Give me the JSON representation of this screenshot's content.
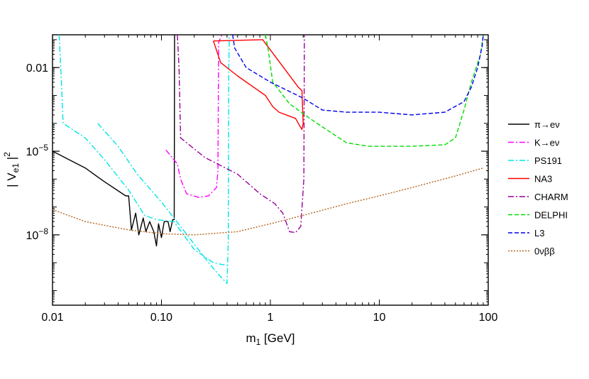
{
  "chart_data": {
    "type": "line",
    "title": "",
    "xscale": "log",
    "yscale": "log",
    "xlim": [
      0.01,
      100
    ],
    "ylim": [
      3e-11,
      0.15
    ],
    "xlabel": {
      "main": "m",
      "sub": "1",
      "unit": " [GeV]"
    },
    "ylabel": {
      "pre": "| V",
      "sub": "e1",
      "post": " |",
      "sup": "2"
    },
    "x_ticks": [
      {
        "value": 0.01,
        "label": "0.01"
      },
      {
        "value": 0.1,
        "label": "0.10"
      },
      {
        "value": 1,
        "label": "1"
      },
      {
        "value": 10,
        "label": "10"
      },
      {
        "value": 100,
        "label": "100"
      }
    ],
    "y_ticks": [
      {
        "value": 1e-08,
        "base": "10",
        "exp": "−8",
        "label": ""
      },
      {
        "value": 1e-05,
        "base": "10",
        "exp": "−5",
        "label": ""
      },
      {
        "value": 0.01,
        "base": "",
        "exp": "",
        "label": "0.01"
      }
    ],
    "legend_position": "right",
    "series": [
      {
        "name": "π→eν",
        "color": "#000000",
        "dash": "",
        "points": [
          [
            0.01,
            1e-05
          ],
          [
            0.02,
            2.5e-06
          ],
          [
            0.03,
            8e-07
          ],
          [
            0.047,
            2.5e-07
          ],
          [
            0.05,
            2.5e-07
          ],
          [
            0.053,
            1.5e-08
          ],
          [
            0.058,
            6e-08
          ],
          [
            0.062,
            1e-08
          ],
          [
            0.068,
            4e-08
          ],
          [
            0.072,
            1.3e-08
          ],
          [
            0.078,
            3e-08
          ],
          [
            0.085,
            1.3e-08
          ],
          [
            0.09,
            4e-09
          ],
          [
            0.094,
            2.5e-08
          ],
          [
            0.1,
            8e-09
          ],
          [
            0.106,
            3e-08
          ],
          [
            0.115,
            3e-08
          ],
          [
            0.12,
            1.3e-08
          ],
          [
            0.127,
            3.5e-08
          ],
          [
            0.131,
            3.5e-08
          ],
          [
            0.132,
            0.15
          ]
        ]
      },
      {
        "name": "K→eν",
        "color": "#ff00ff",
        "dash": "8,3,2,3",
        "points": [
          [
            0.11,
            1.1e-05
          ],
          [
            0.14,
            3.5e-06
          ],
          [
            0.15,
            1e-06
          ],
          [
            0.17,
            3e-07
          ],
          [
            0.22,
            2.2e-07
          ],
          [
            0.27,
            2.5e-07
          ],
          [
            0.32,
            5e-07
          ],
          [
            0.33,
            2e-06
          ],
          [
            0.335,
            0.08
          ],
          [
            0.35,
            0.12
          ],
          [
            0.36,
            0.15
          ]
        ]
      },
      {
        "name": "PS191",
        "color": "#00e5e5",
        "dash": "8,3,2,3",
        "points": [
          [
            0.0115,
            0.15
          ],
          [
            0.012,
            0.005
          ],
          [
            0.0125,
            0.0001
          ],
          [
            0.02,
            3e-05
          ],
          [
            0.03,
            5e-06
          ],
          [
            0.05,
            4e-07
          ],
          [
            0.07,
            5e-08
          ],
          [
            0.09,
            3.5e-08
          ],
          [
            0.13,
            3e-08
          ],
          [
            0.2,
            3e-09
          ],
          [
            0.3,
            1e-09
          ],
          [
            0.4,
            8e-10
          ],
          [
            null,
            null
          ],
          [
            0.026,
            0.0001
          ],
          [
            0.04,
            1.5e-05
          ],
          [
            0.06,
            1.5e-06
          ],
          [
            0.1,
            1.5e-07
          ],
          [
            0.15,
            2e-08
          ],
          [
            0.25,
            1.5e-09
          ],
          [
            0.33,
            4e-10
          ],
          [
            0.4,
            1.8e-10
          ],
          [
            0.41,
            5e-09
          ],
          [
            0.415,
            0.01
          ],
          [
            0.42,
            0.15
          ]
        ]
      },
      {
        "name": "NA3",
        "color": "#ff0000",
        "dash": "",
        "points": [
          [
            0.3,
            0.09
          ],
          [
            0.85,
            0.1
          ],
          [
            1.8,
            0.002
          ],
          [
            1.95,
            0.0015
          ],
          [
            2.0,
            0.0001
          ],
          [
            1.95,
            6e-05
          ],
          [
            1.7,
            0.00015
          ],
          [
            1.5,
            0.00018
          ],
          [
            1.2,
            0.00025
          ],
          [
            1.05,
            0.0004
          ],
          [
            0.9,
            0.001
          ],
          [
            0.5,
            0.005
          ],
          [
            0.35,
            0.015
          ],
          [
            0.3,
            0.09
          ]
        ]
      },
      {
        "name": "CHARM",
        "color": "#990099",
        "dash": "8,3,2,3",
        "points": [
          [
            0.14,
            0.15
          ],
          [
            0.145,
            0.01
          ],
          [
            0.15,
            3e-05
          ],
          [
            0.25,
            6e-06
          ],
          [
            0.5,
            1.5e-06
          ],
          [
            0.8,
            3e-07
          ],
          [
            1.1,
            1.3e-07
          ],
          [
            1.3,
            6e-08
          ],
          [
            1.5,
            1.3e-08
          ],
          [
            1.7,
            1.2e-08
          ],
          [
            1.9,
            2e-08
          ],
          [
            2.03,
            1e-06
          ],
          [
            2.05,
            0.15
          ]
        ]
      },
      {
        "name": "DELPHI",
        "color": "#00dd00",
        "dash": "6,3",
        "points": [
          [
            0.9,
            0.15
          ],
          [
            0.95,
            0.05
          ],
          [
            1.05,
            0.003
          ],
          [
            1.5,
            0.0005
          ],
          [
            2.5,
            0.00012
          ],
          [
            5,
            2e-05
          ],
          [
            8,
            1.5e-05
          ],
          [
            20,
            1.5e-05
          ],
          [
            40,
            1.7e-05
          ],
          [
            50,
            3e-05
          ],
          [
            60,
            0.0003
          ],
          [
            70,
            0.003
          ],
          [
            85,
            0.03
          ],
          [
            90,
            0.15
          ]
        ]
      },
      {
        "name": "L3",
        "color": "#0000ee",
        "dash": "6,3",
        "points": [
          [
            0.45,
            0.15
          ],
          [
            0.47,
            0.05
          ],
          [
            0.6,
            0.01
          ],
          [
            1,
            0.003
          ],
          [
            2,
            0.0008
          ],
          [
            3,
            0.0003
          ],
          [
            5,
            0.00025
          ],
          [
            10,
            0.00025
          ],
          [
            20,
            0.0002
          ],
          [
            40,
            0.00025
          ],
          [
            60,
            0.0006
          ],
          [
            70,
            0.002
          ],
          [
            80,
            0.01
          ],
          [
            88,
            0.06
          ],
          [
            90,
            0.15
          ]
        ]
      },
      {
        "name": "0νββ",
        "color": "#b5651d",
        "dash": "2,2",
        "points": [
          [
            0.01,
            8e-08
          ],
          [
            0.02,
            3e-08
          ],
          [
            0.05,
            1.5e-08
          ],
          [
            0.1,
            1.1e-08
          ],
          [
            0.2,
            1e-08
          ],
          [
            0.5,
            1.3e-08
          ],
          [
            1,
            2.5e-08
          ],
          [
            2,
            5e-08
          ],
          [
            5,
            1.3e-07
          ],
          [
            10,
            2.5e-07
          ],
          [
            20,
            5e-07
          ],
          [
            50,
            1.3e-06
          ],
          [
            90,
            2.5e-06
          ]
        ]
      }
    ]
  }
}
